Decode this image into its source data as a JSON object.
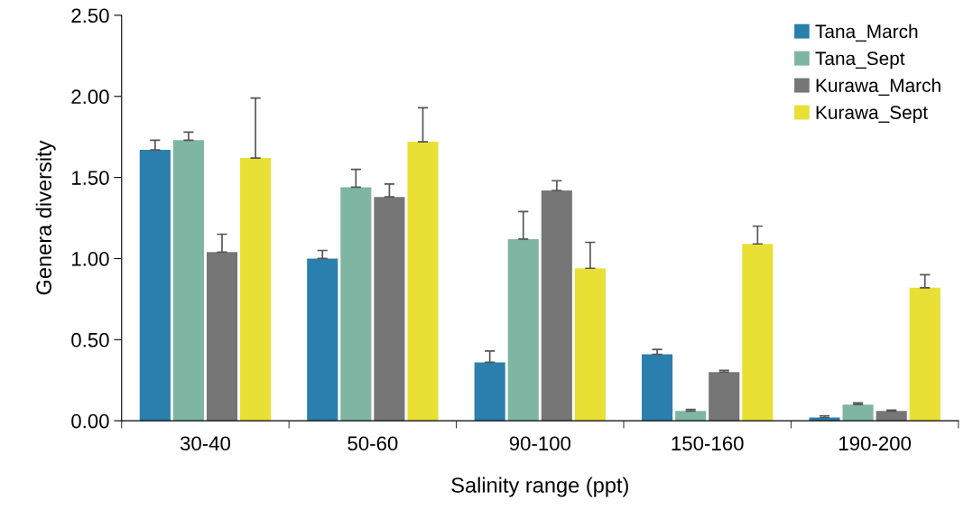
{
  "chart_data": {
    "type": "bar",
    "xlabel": "Salinity range (ppt)",
    "ylabel": "Genera diversity",
    "categories": [
      "30-40",
      "50-60",
      "90-100",
      "150-160",
      "190-200"
    ],
    "series": [
      {
        "name": "Tana_March",
        "color": "#2a7fad",
        "values": [
          1.67,
          1.0,
          0.36,
          0.41,
          0.02
        ],
        "errors": [
          [
            1.67,
            1.73
          ],
          [
            1.0,
            1.05
          ],
          [
            0.36,
            0.43
          ],
          [
            0.41,
            0.44
          ],
          [
            0.02,
            0.03
          ]
        ]
      },
      {
        "name": "Tana_Sept",
        "color": "#7fb5a3",
        "values": [
          1.73,
          1.44,
          1.12,
          0.06,
          0.1
        ],
        "errors": [
          [
            1.73,
            1.78
          ],
          [
            1.44,
            1.55
          ],
          [
            1.12,
            1.29
          ],
          [
            0.06,
            0.07
          ],
          [
            0.1,
            0.11
          ]
        ]
      },
      {
        "name": "Kurawa_March",
        "color": "#767676",
        "values": [
          1.04,
          1.38,
          1.42,
          0.3,
          0.06
        ],
        "errors": [
          [
            1.04,
            1.15
          ],
          [
            1.38,
            1.46
          ],
          [
            1.42,
            1.48
          ],
          [
            0.3,
            0.31
          ],
          [
            0.06,
            0.065
          ]
        ]
      },
      {
        "name": "Kurawa_Sept",
        "color": "#e8e034",
        "values": [
          1.62,
          1.72,
          0.94,
          1.09,
          0.82
        ],
        "errors": [
          [
            1.62,
            1.99
          ],
          [
            1.72,
            1.93
          ],
          [
            0.94,
            1.1
          ],
          [
            1.09,
            1.2
          ],
          [
            0.82,
            0.9
          ]
        ]
      }
    ],
    "ylim": [
      0,
      2.5
    ],
    "yticks": [
      {
        "value": 0,
        "label": "0.00"
      },
      {
        "value": 0.5,
        "label": "0.50"
      },
      {
        "value": 1.0,
        "label": "1.00"
      },
      {
        "value": 1.5,
        "label": "1.50"
      },
      {
        "value": 2.0,
        "label": "2.00"
      },
      {
        "value": 2.5,
        "label": "2.50"
      }
    ],
    "grid": false,
    "legend": "top right"
  }
}
